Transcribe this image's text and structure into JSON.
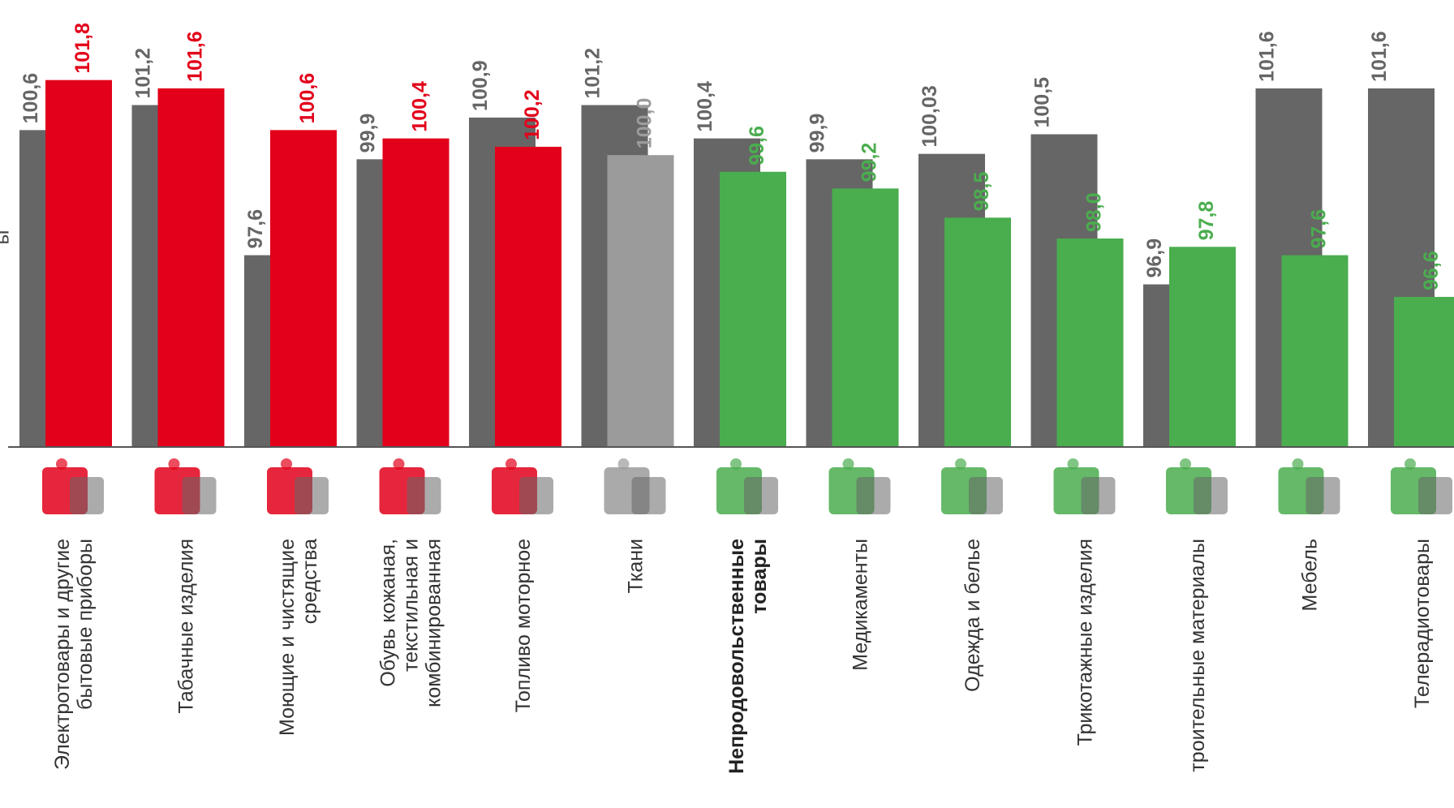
{
  "colors": {
    "prev": "#666666",
    "up": "#e2001a",
    "flat": "#9b9b9b",
    "down": "#4aad4e",
    "axis": "#555555"
  },
  "edge_label": "ы",
  "chart_data": {
    "type": "bar",
    "title": "",
    "xlabel": "",
    "ylabel": "",
    "ylim": [
      93.0,
      103.0
    ],
    "categories": [
      "Электротовары и другие|бытовые приборы",
      "Табачные изделия",
      "Моющие и чистящие|средства",
      "Обувь кожаная,|текстильная и|комбинированная",
      "Топливо моторное",
      "Ткани",
      "Непродовольственные|товары",
      "Медикаменты",
      "Одежда и белье",
      "Трикотажные изделия",
      "троительные материалы",
      "Мебель",
      "Телерадиотовары"
    ],
    "bold_categories": [
      6
    ],
    "icons": [
      "kettle-icon",
      "cigarettes-icon",
      "detergent-icon",
      "boot-icon",
      "fuel-canister-icon",
      "fabric-icon",
      "goods-icon",
      "medicine-icon",
      "clothing-icon",
      "knit-hat-icon",
      "building-materials-icon",
      "furniture-icon",
      "tv-icon"
    ],
    "series": [
      {
        "values": [
          100.6,
          101.2,
          97.6,
          99.9,
          100.9,
          101.2,
          100.4,
          99.9,
          100.03,
          100.5,
          96.9,
          101.6,
          101.6
        ],
        "labels": [
          "100,6",
          "101,2",
          "97,6",
          "99,9",
          "100,9",
          "101,2",
          "100,4",
          "99,9",
          "100,03",
          "100,5",
          "96,9",
          "101,6",
          "101,6"
        ]
      },
      {
        "values": [
          101.8,
          101.6,
          100.6,
          100.4,
          100.2,
          100.0,
          99.6,
          99.2,
          98.5,
          98.0,
          97.8,
          97.6,
          96.6
        ],
        "labels": [
          "101,8",
          "101,6",
          "100,6",
          "100,4",
          "100,2",
          "100,0",
          "99,6",
          "99,2",
          "98,5",
          "98,0",
          "97,8",
          "97,6",
          "96,6"
        ],
        "trend": [
          "up",
          "up",
          "up",
          "up",
          "up",
          "flat",
          "down",
          "down",
          "down",
          "down",
          "down",
          "down",
          "down"
        ]
      }
    ]
  }
}
